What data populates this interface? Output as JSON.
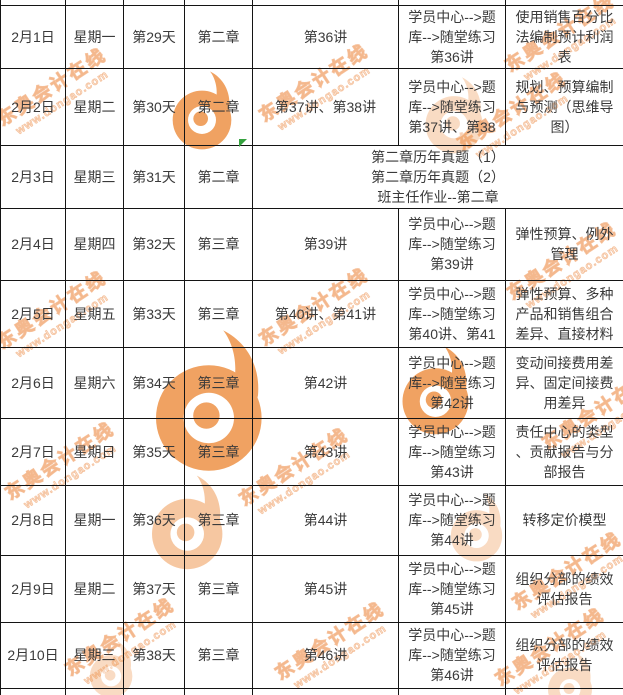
{
  "watermark": {
    "line1": "东奥会计在线",
    "line2": "www.dongao.com"
  },
  "colors": {
    "background": "#ffffff",
    "border": "#141414",
    "text": "#3a3a3a",
    "logo_orange": "#ef9b55",
    "watermark_orange": "#ee9455",
    "green_marker": "#35a23f"
  },
  "table": {
    "rows": [
      {
        "cells": [
          "2月1日",
          "星期一",
          "第29天",
          "第二章",
          "第36讲",
          "学员中心-->题\n库-->随堂练习\n第36讲",
          "使用销售百分比\n法编制预计利润\n表"
        ]
      },
      {
        "cells": [
          "2月2日",
          "星期二",
          "第30天",
          "第二章",
          "第37讲、第38讲",
          "学员中心-->题\n库-->随堂练习\n第37讲、第38",
          "规划、预算编制\n与预测（思维导\n图）"
        ]
      },
      {
        "cells": [
          "2月3日",
          "星期三",
          "第31天",
          "第二章",
          {
            "text": "第二章历年真题（1）\n第二章历年真题（2）\n班主任作业--第二章",
            "colspan": 3
          }
        ]
      },
      {
        "cells": [
          "2月4日",
          "星期四",
          "第32天",
          "第三章",
          "第39讲",
          "学员中心-->题\n库-->随堂练习\n第39讲",
          "弹性预算、例外\n管理"
        ]
      },
      {
        "cells": [
          "2月5日",
          "星期五",
          "第33天",
          "第三章",
          "第40讲、第41讲",
          "学员中心-->题\n库-->随堂练习\n第40讲、第41",
          "弹性预算、多种\n产品和销售组合\n差异、直接材料"
        ]
      },
      {
        "cells": [
          "2月6日",
          "星期六",
          "第34天",
          "第三章",
          "第42讲",
          "学员中心-->题\n库-->随堂练习\n第42讲",
          "变动间接费用差\n异、固定间接费\n用差异"
        ]
      },
      {
        "cells": [
          "2月7日",
          "星期日",
          "第35天",
          "第三章",
          "第43讲",
          "学员中心-->题\n库-->随堂练习\n第43讲",
          "责任中心的类型\n、贡献报告与分\n部报告"
        ]
      },
      {
        "cells": [
          "2月8日",
          "星期一",
          "第36天",
          "第三章",
          "第44讲",
          "学员中心-->题\n库-->随堂练习\n第44讲",
          "转移定价模型"
        ]
      },
      {
        "cells": [
          "2月9日",
          "星期二",
          "第37天",
          "第三章",
          "第45讲",
          "学员中心-->题\n库-->随堂练习\n第45讲",
          "组织分部的绩效\n评估报告"
        ]
      },
      {
        "cells": [
          "2月10日",
          "星期三",
          "第38天",
          "第三章",
          "第46讲",
          "学员中心-->题\n库-->随堂练习\n第46讲",
          "组织分部的绩效\n评估报告"
        ]
      }
    ]
  }
}
